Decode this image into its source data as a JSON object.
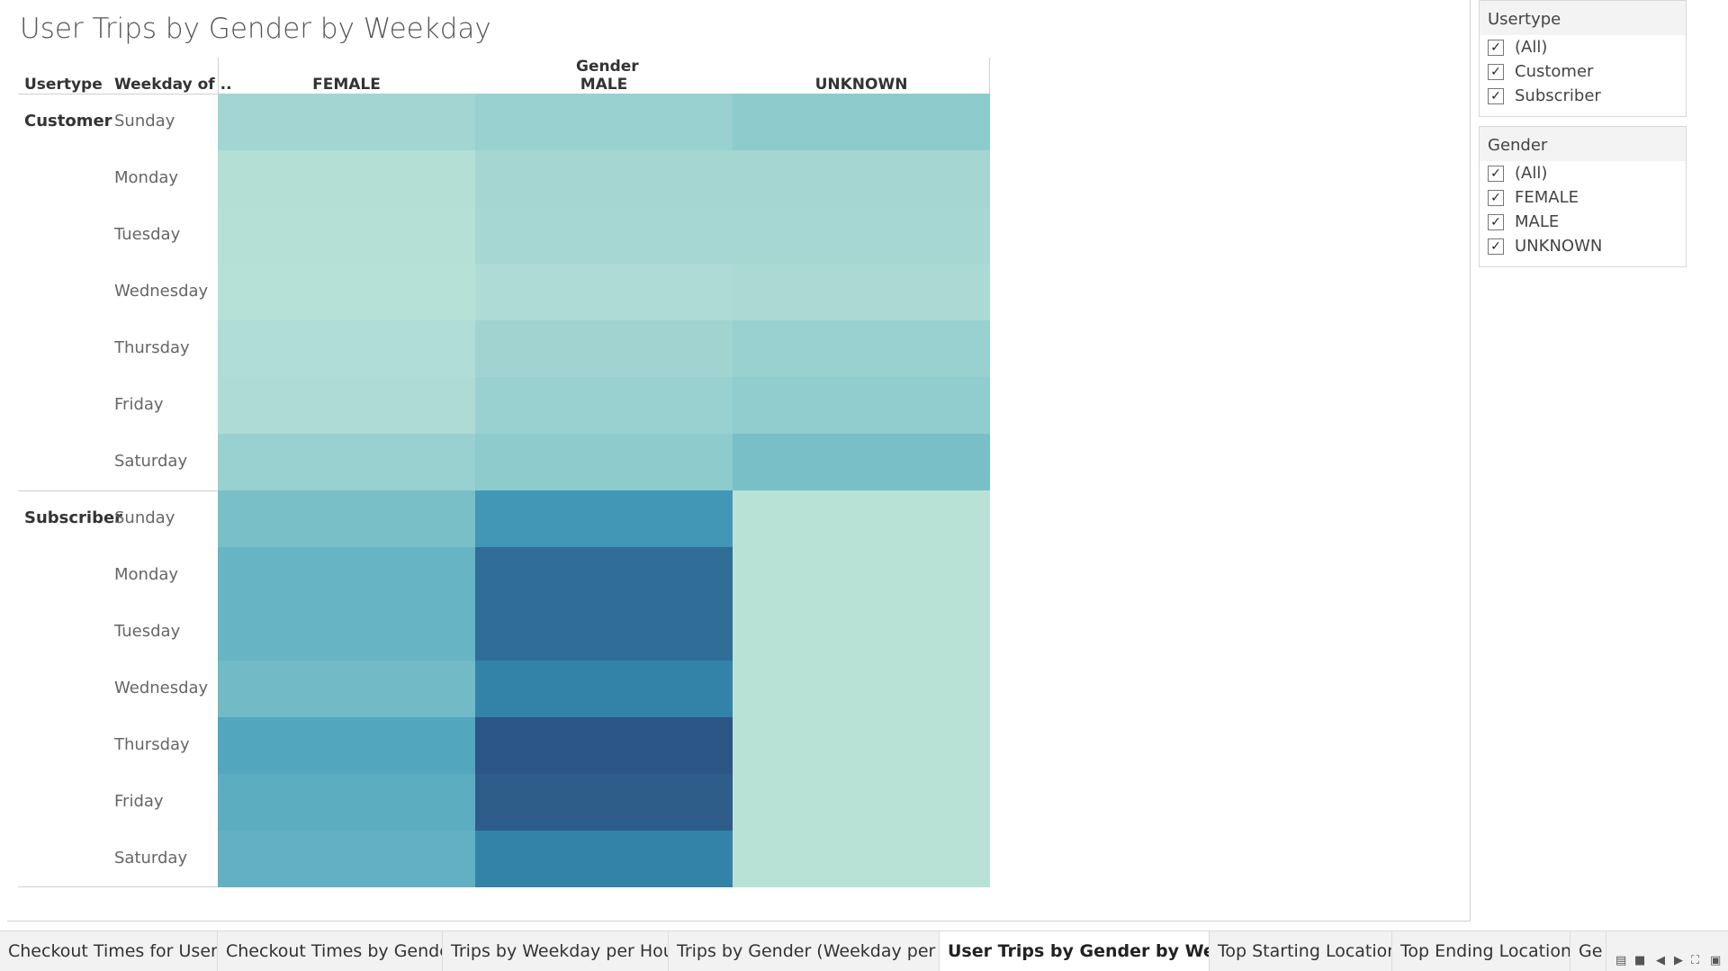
{
  "title": "User Trips by Gender by Weekday",
  "headers": {
    "usertype": "Usertype",
    "weekday": "Weekday of ..",
    "column_group": "Gender"
  },
  "chart_data": {
    "type": "heatmap",
    "columns": [
      "FEMALE",
      "MALE",
      "UNKNOWN"
    ],
    "row_groups": [
      {
        "name": "Customer",
        "rows": [
          "Sunday",
          "Monday",
          "Tuesday",
          "Wednesday",
          "Thursday",
          "Friday",
          "Saturday"
        ],
        "values": [
          [
            0.17,
            0.22,
            0.28
          ],
          [
            0.06,
            0.16,
            0.16
          ],
          [
            0.05,
            0.15,
            0.15
          ],
          [
            0.04,
            0.1,
            0.12
          ],
          [
            0.08,
            0.18,
            0.22
          ],
          [
            0.1,
            0.22,
            0.26
          ],
          [
            0.22,
            0.28,
            0.38
          ]
        ]
      },
      {
        "name": "Subscriber",
        "rows": [
          "Sunday",
          "Monday",
          "Tuesday",
          "Wednesday",
          "Thursday",
          "Friday",
          "Saturday"
        ],
        "values": [
          [
            0.38,
            0.62,
            0.02
          ],
          [
            0.46,
            0.8,
            0.02
          ],
          [
            0.46,
            0.8,
            0.02
          ],
          [
            0.42,
            0.72,
            0.02
          ],
          [
            0.54,
            0.97,
            0.02
          ],
          [
            0.5,
            0.88,
            0.02
          ],
          [
            0.48,
            0.72,
            0.02
          ]
        ]
      }
    ],
    "color_scale": [
      "#bbe4d7",
      "#a8d8d3",
      "#8ccacd",
      "#6fb9c6",
      "#4aa1bc",
      "#3384aa",
      "#2e5f8b",
      "#2c5485"
    ]
  },
  "filters": [
    {
      "title": "Usertype",
      "options": [
        "(All)",
        "Customer",
        "Subscriber"
      ]
    },
    {
      "title": "Gender",
      "options": [
        "(All)",
        "FEMALE",
        "MALE",
        "UNKNOWN"
      ]
    }
  ],
  "tabs": [
    "Checkout Times for Users",
    "Checkout Times by Gender",
    "Trips by Weekday per Hour",
    "Trips by Gender (Weekday per H...",
    "User Trips by Gender by Week...",
    "Top Starting Location",
    "Top Ending Location",
    "Ge"
  ],
  "active_tab": 4
}
